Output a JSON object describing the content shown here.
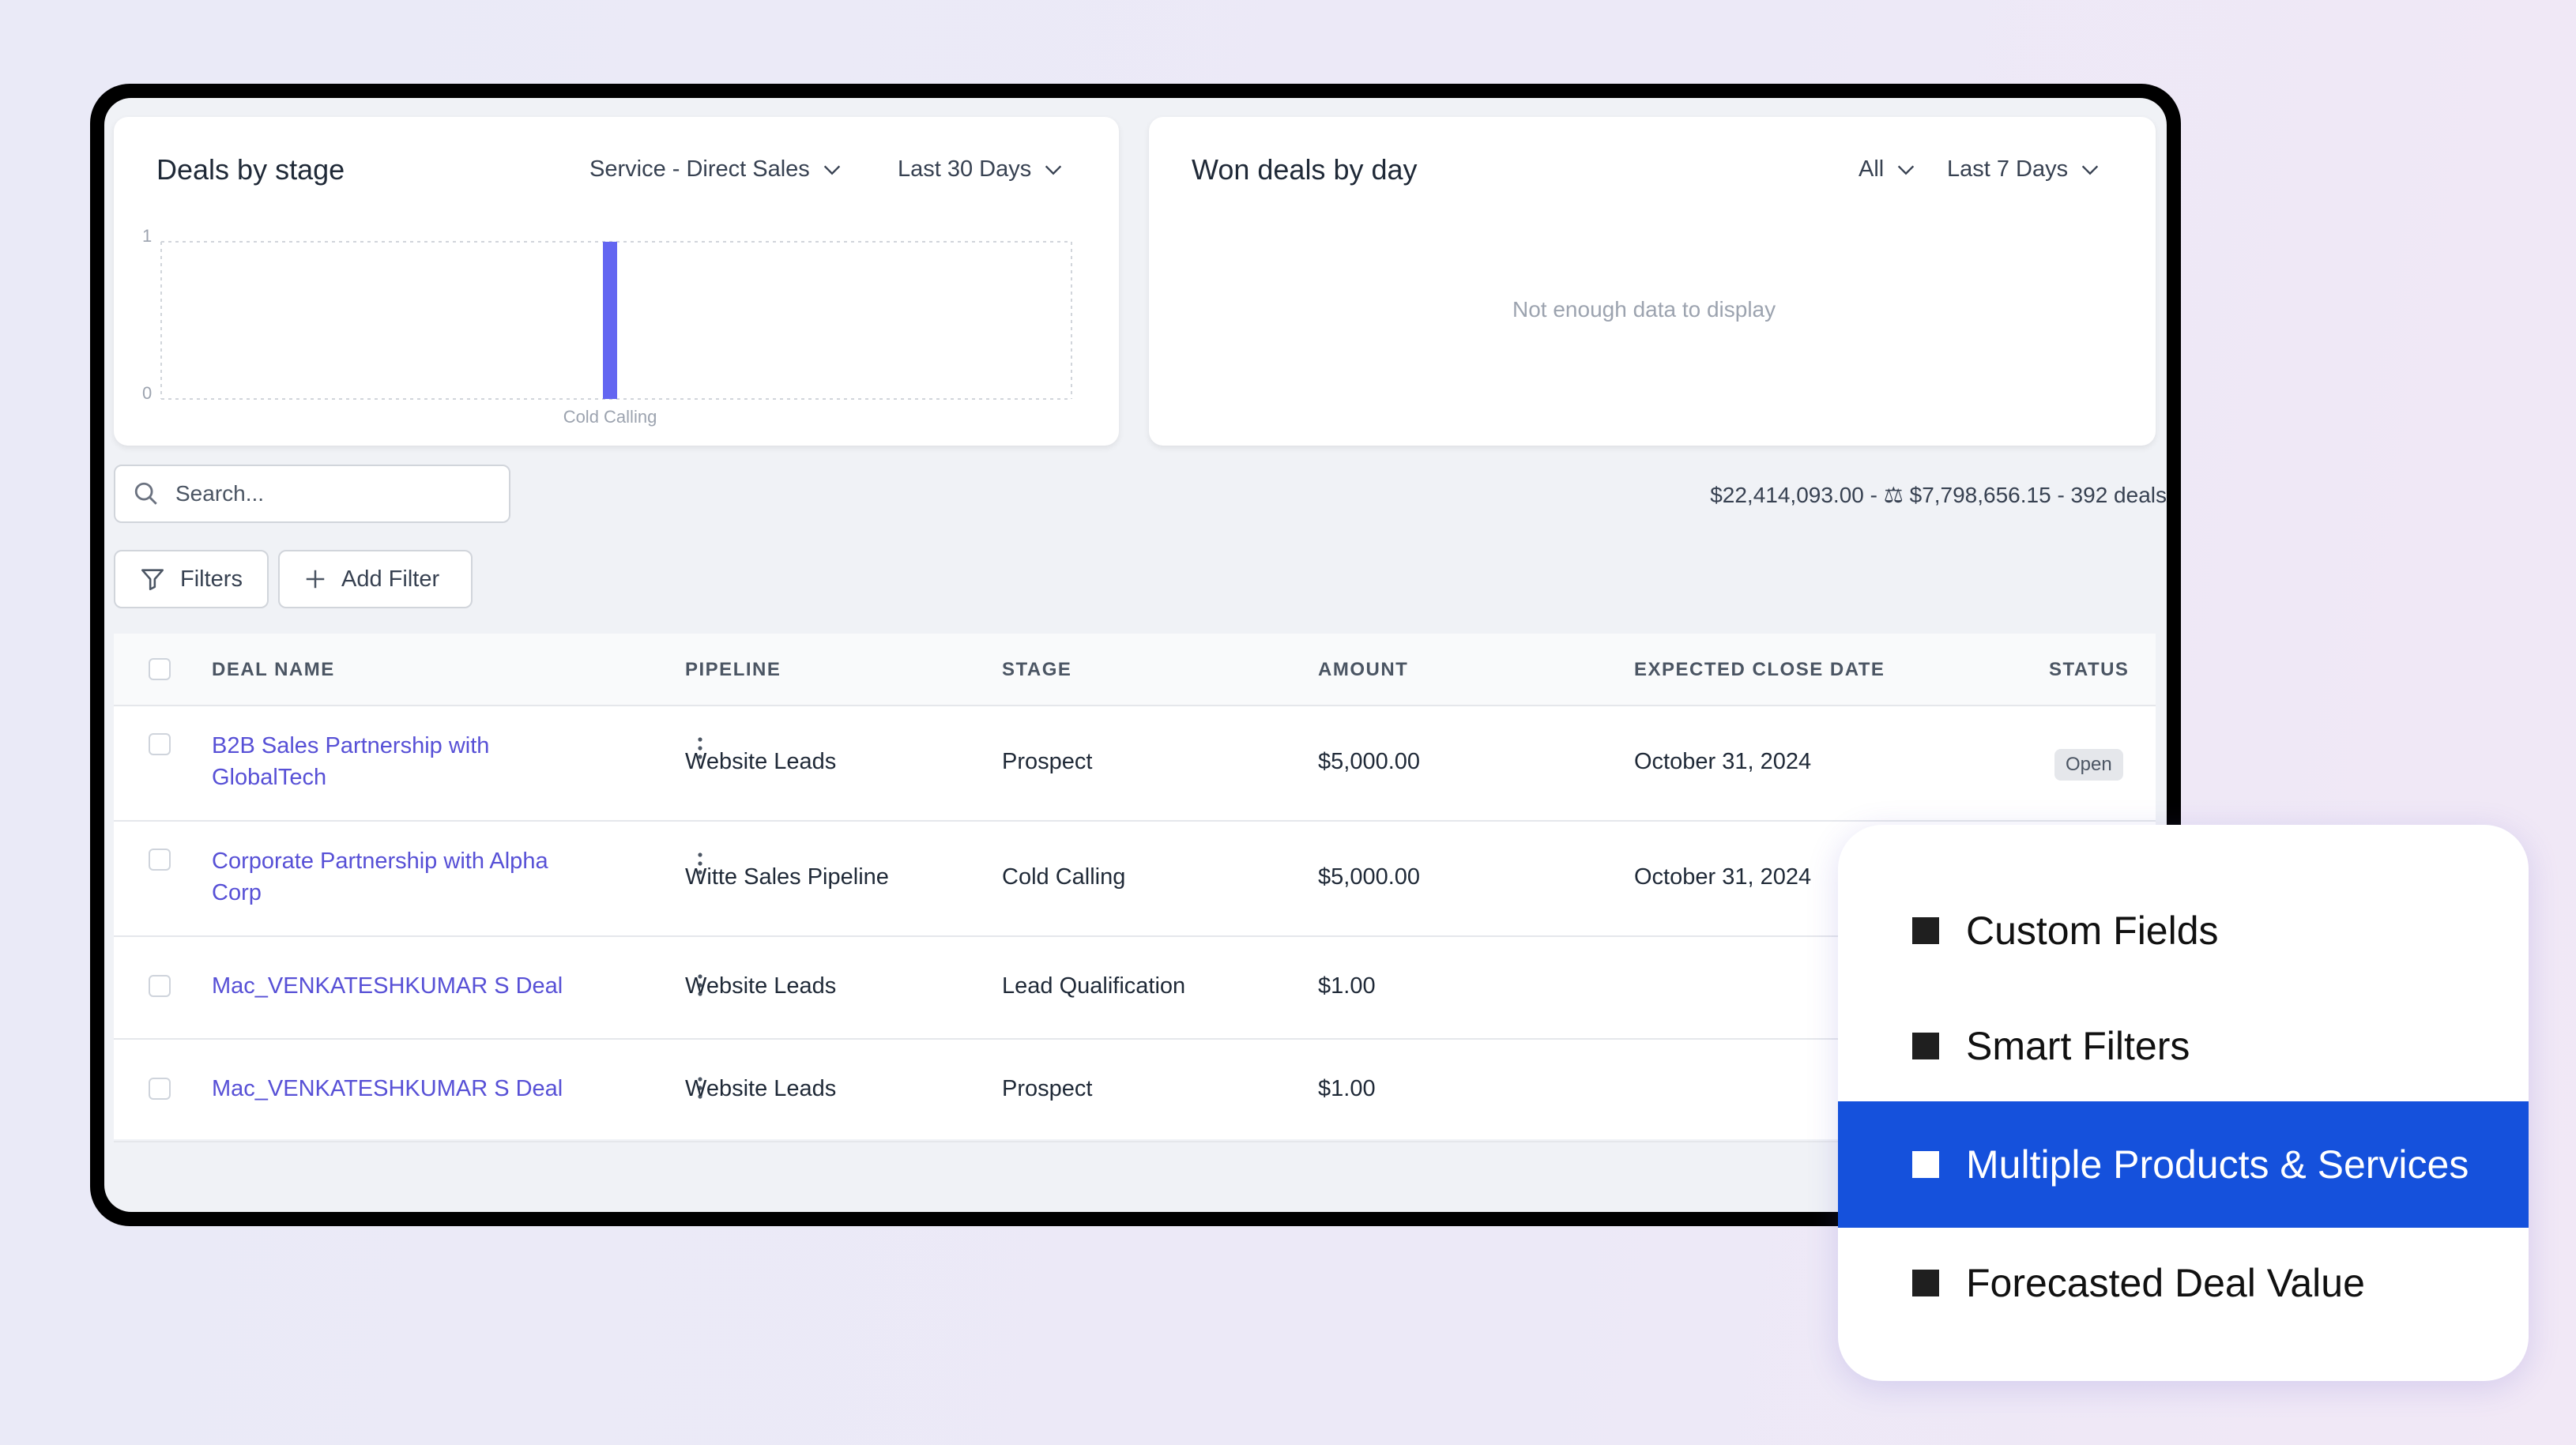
{
  "deals_chart": {
    "title": "Deals by stage",
    "pipeline_filter": "Service - Direct Sales",
    "range_filter": "Last 30 Days"
  },
  "won_chart": {
    "title": "Won deals by day",
    "status_filter": "All",
    "range_filter": "Last 7 Days",
    "empty_message": "Not enough data to display"
  },
  "chart_data": {
    "type": "bar",
    "categories": [
      "Cold Calling"
    ],
    "values": [
      1
    ],
    "title": "Deals by stage",
    "xlabel": "",
    "ylabel": "",
    "ylim": [
      0,
      1
    ],
    "yticks": [
      "0",
      "1"
    ],
    "bar_color": "#6366f1",
    "grid": true
  },
  "search": {
    "placeholder": "Search..."
  },
  "summary": "$22,414,093.00 - ⚖ $7,798,656.15 - 392 deals",
  "toolbar": {
    "filters_label": "Filters",
    "add_filter_label": "Add Filter"
  },
  "table": {
    "headers": {
      "deal_name": "DEAL NAME",
      "pipeline": "PIPELINE",
      "stage": "STAGE",
      "amount": "AMOUNT",
      "close_date": "EXPECTED CLOSE DATE",
      "status": "STATUS"
    },
    "rows": [
      {
        "name": "B2B Sales Partnership with GlobalTech",
        "pipeline": "Website Leads",
        "stage": "Prospect",
        "amount": "$5,000.00",
        "close_date": "October 31, 2024",
        "status": "Open"
      },
      {
        "name": "Corporate Partnership with Alpha Corp",
        "pipeline": "Witte Sales Pipeline",
        "stage": "Cold Calling",
        "amount": "$5,000.00",
        "close_date": "October 31, 2024",
        "status": ""
      },
      {
        "name": "Mac_VENKATESHKUMAR S Deal",
        "pipeline": "Website Leads",
        "stage": "Lead Qualification",
        "amount": "$1.00",
        "close_date": "",
        "status": ""
      },
      {
        "name": "Mac_VENKATESHKUMAR S Deal",
        "pipeline": "Website Leads",
        "stage": "Prospect",
        "amount": "$1.00",
        "close_date": "",
        "status": ""
      }
    ]
  },
  "features": {
    "items": [
      {
        "label": "Custom Fields"
      },
      {
        "label": "Smart Filters"
      },
      {
        "label": "Multiple Products & Services"
      },
      {
        "label": "Forecasted Deal Value"
      }
    ],
    "active_index": 2,
    "active_color": "#1551dc"
  },
  "colors": {
    "link": "#5750d6",
    "bar": "#6366f1"
  }
}
